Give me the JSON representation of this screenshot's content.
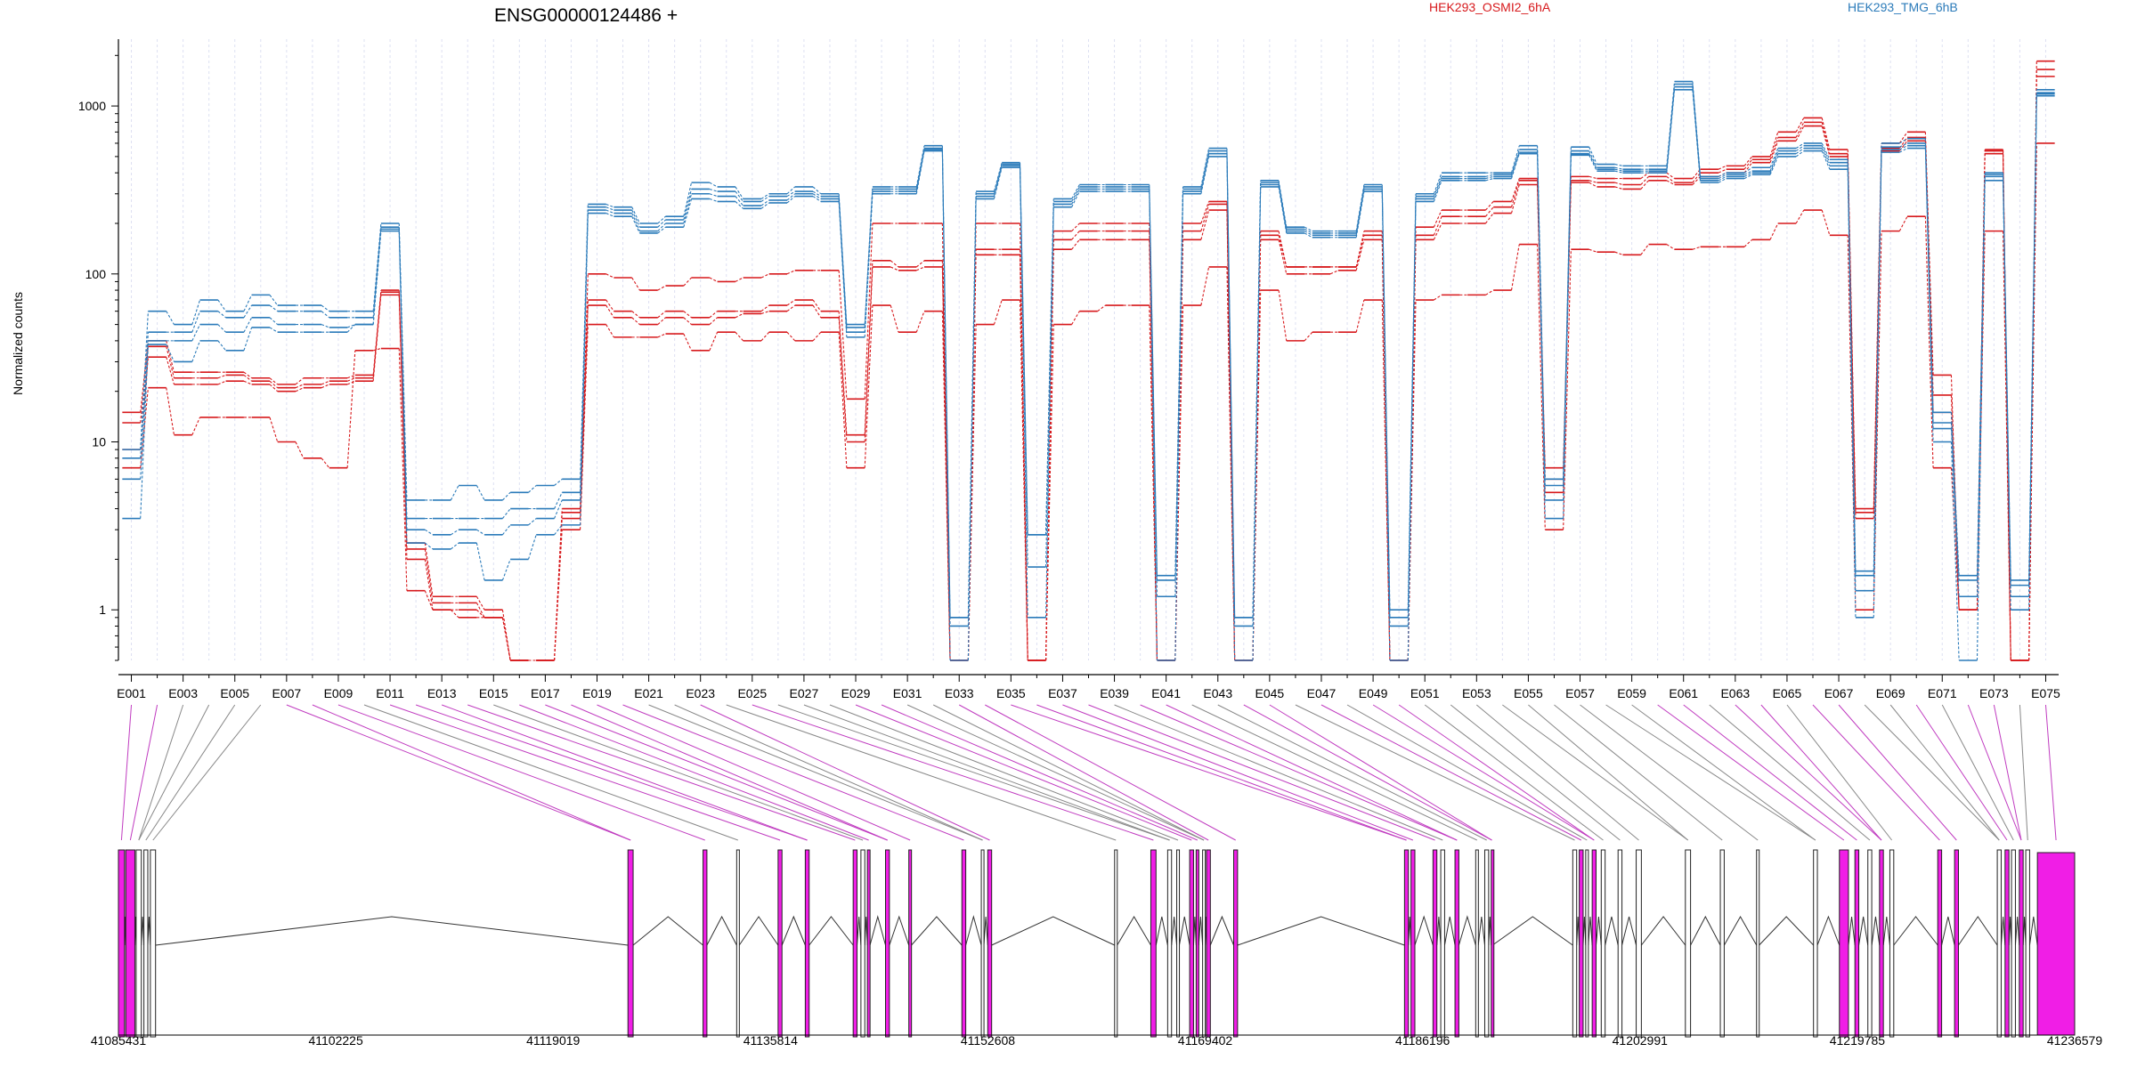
{
  "chart_data": {
    "type": "line",
    "title": "ENSG00000124486 +",
    "ylabel": "Normalized counts",
    "yscale": "log",
    "ylim": [
      0.5,
      2500
    ],
    "y_ticks": [
      "1",
      "10",
      "100",
      "1000"
    ],
    "y_tick_values": [
      1,
      10,
      100,
      1000
    ],
    "legend": [
      {
        "name": "HEK293_OSMI2_6hA",
        "color": "#d7191c"
      },
      {
        "name": "HEK293_TMG_6hB",
        "color": "#2b7bba"
      }
    ],
    "exon_labels": [
      "E001",
      "E003",
      "E005",
      "E007",
      "E009",
      "E011",
      "E013",
      "E015",
      "E017",
      "E019",
      "E021",
      "E023",
      "E025",
      "E027",
      "E029",
      "E031",
      "E033",
      "E035",
      "E037",
      "E039",
      "E041",
      "E043",
      "E045",
      "E047",
      "E049",
      "E051",
      "E053",
      "E055",
      "E057",
      "E059",
      "E061",
      "E063",
      "E065",
      "E067",
      "E069",
      "E071",
      "E073",
      "E075"
    ],
    "n_exons": 75,
    "genomic_ticks": [
      "41085431",
      "41102225",
      "41119019",
      "41135814",
      "41152608",
      "41169402",
      "41186196",
      "41202991",
      "41219785",
      "41236579"
    ],
    "genomic_range": [
      41085431,
      41236579
    ],
    "series": [
      {
        "name": "HEK293_OSMI2_6hA",
        "group": "red",
        "values": [
          15,
          40,
          26,
          26,
          26,
          24,
          22,
          24,
          24,
          25,
          80,
          2.5,
          1.2,
          1.2,
          1,
          0.5,
          0.5,
          4,
          100,
          95,
          80,
          85,
          95,
          90,
          95,
          100,
          105,
          105,
          18,
          200,
          200,
          200,
          0.5,
          200,
          200,
          0.5,
          180,
          200,
          200,
          200,
          0.5,
          200,
          270,
          0.5,
          180,
          110,
          110,
          110,
          180,
          0.5,
          190,
          240,
          240,
          270,
          370,
          7,
          380,
          370,
          370,
          400,
          370,
          420,
          440,
          500,
          700,
          850,
          550,
          4,
          600,
          700,
          25,
          1,
          550,
          0.5,
          1850
        ]
      },
      {
        "name": "HEK293_OSMI2_6hA",
        "group": "red",
        "values": [
          13,
          37,
          24,
          24,
          25,
          23,
          21,
          22,
          23,
          24,
          78,
          2.3,
          1.1,
          1.1,
          0.9,
          0.5,
          0.5,
          3.8,
          70,
          60,
          55,
          60,
          55,
          60,
          60,
          65,
          70,
          60,
          11,
          120,
          110,
          120,
          0.5,
          140,
          140,
          0.5,
          160,
          180,
          180,
          180,
          0.5,
          180,
          260,
          0.5,
          170,
          110,
          110,
          110,
          170,
          0.5,
          170,
          220,
          220,
          250,
          360,
          6,
          360,
          350,
          340,
          380,
          350,
          400,
          420,
          480,
          650,
          800,
          520,
          3.8,
          560,
          650,
          19,
          1,
          540,
          0.5,
          1650
        ]
      },
      {
        "name": "HEK293_OSMI2_6hA",
        "group": "red",
        "values": [
          9,
          32,
          22,
          22,
          23,
          22,
          20,
          21,
          22,
          23,
          75,
          2,
          1,
          1,
          0.9,
          0.5,
          0.5,
          3.5,
          65,
          55,
          50,
          55,
          50,
          55,
          58,
          60,
          65,
          55,
          10,
          110,
          105,
          110,
          0.5,
          130,
          130,
          0.5,
          140,
          160,
          160,
          160,
          0.5,
          160,
          240,
          0.5,
          160,
          100,
          100,
          105,
          160,
          0.5,
          160,
          200,
          200,
          230,
          340,
          5,
          350,
          330,
          320,
          360,
          340,
          380,
          400,
          460,
          620,
          760,
          500,
          3.5,
          540,
          620,
          15,
          1,
          520,
          0.5,
          1500
        ]
      },
      {
        "name": "HEK293_OSMI2_6hA",
        "group": "red",
        "values": [
          7,
          21,
          11,
          14,
          14,
          14,
          10,
          8,
          7,
          35,
          36,
          1.3,
          1,
          0.9,
          0.9,
          0.5,
          0.5,
          3,
          50,
          42,
          42,
          44,
          35,
          45,
          40,
          45,
          40,
          45,
          7,
          65,
          45,
          60,
          0.5,
          50,
          70,
          0.5,
          50,
          60,
          65,
          65,
          0.5,
          65,
          110,
          0.5,
          80,
          40,
          45,
          45,
          70,
          0.5,
          70,
          75,
          75,
          80,
          150,
          3,
          140,
          135,
          130,
          150,
          140,
          145,
          145,
          160,
          200,
          240,
          170,
          1,
          180,
          220,
          7,
          1,
          180,
          0.5,
          600
        ]
      },
      {
        "name": "HEK293_TMG_6hB",
        "group": "blue",
        "values": [
          9,
          60,
          50,
          70,
          60,
          75,
          65,
          65,
          60,
          60,
          200,
          4.5,
          4.5,
          5.5,
          4.5,
          5,
          5.5,
          6,
          260,
          250,
          200,
          220,
          350,
          330,
          280,
          300,
          330,
          300,
          50,
          330,
          330,
          580,
          0.9,
          310,
          460,
          2.8,
          280,
          340,
          340,
          340,
          1.6,
          330,
          560,
          0.9,
          360,
          190,
          180,
          180,
          340,
          1,
          300,
          400,
          400,
          400,
          580,
          6,
          570,
          450,
          440,
          440,
          1400,
          380,
          400,
          430,
          560,
          600,
          480,
          1.7,
          600,
          640,
          15,
          1.6,
          400,
          1.5,
          1250
        ]
      },
      {
        "name": "HEK293_TMG_6hB",
        "group": "blue",
        "values": [
          8,
          45,
          45,
          60,
          55,
          65,
          60,
          60,
          55,
          55,
          190,
          3.5,
          3.5,
          3.5,
          3.5,
          4,
          4,
          5,
          250,
          240,
          190,
          210,
          320,
          310,
          270,
          290,
          310,
          290,
          48,
          320,
          320,
          560,
          0.9,
          300,
          450,
          2.8,
          270,
          330,
          330,
          330,
          1.5,
          320,
          540,
          0.9,
          350,
          185,
          175,
          175,
          330,
          0.9,
          290,
          380,
          380,
          390,
          550,
          5.5,
          540,
          430,
          420,
          420,
          1350,
          370,
          390,
          410,
          540,
          580,
          460,
          1.6,
          570,
          600,
          13,
          1.5,
          390,
          1.4,
          1200
        ]
      },
      {
        "name": "HEK293_TMG_6hB",
        "group": "blue",
        "values": [
          6,
          40,
          40,
          50,
          45,
          55,
          50,
          50,
          48,
          50,
          185,
          3,
          2.8,
          3,
          2.8,
          3.2,
          3.5,
          4.5,
          240,
          230,
          180,
          200,
          300,
          290,
          255,
          275,
          300,
          280,
          45,
          310,
          310,
          550,
          0.8,
          290,
          440,
          1.8,
          260,
          320,
          320,
          320,
          1.2,
          310,
          520,
          0.8,
          340,
          180,
          170,
          170,
          320,
          0.8,
          280,
          370,
          370,
          380,
          530,
          4.5,
          520,
          420,
          410,
          410,
          1300,
          360,
          380,
          400,
          520,
          560,
          440,
          1.3,
          550,
          580,
          12,
          1.2,
          380,
          1.2,
          1180
        ]
      },
      {
        "name": "HEK293_TMG_6hB",
        "group": "blue",
        "values": [
          3.5,
          38,
          30,
          40,
          35,
          48,
          45,
          45,
          45,
          50,
          180,
          2.5,
          2.3,
          2.5,
          1.5,
          2,
          2.8,
          3.2,
          230,
          220,
          175,
          190,
          280,
          270,
          245,
          265,
          290,
          270,
          42,
          300,
          300,
          540,
          0.5,
          280,
          430,
          0.9,
          250,
          310,
          310,
          310,
          0.5,
          300,
          500,
          0.5,
          330,
          175,
          165,
          165,
          310,
          0.5,
          270,
          360,
          360,
          370,
          520,
          3.5,
          510,
          410,
          400,
          400,
          1250,
          350,
          370,
          390,
          500,
          540,
          420,
          0.9,
          530,
          560,
          10,
          0.5,
          360,
          1,
          1150
        ]
      }
    ],
    "gene_model": {
      "exons": [
        {
          "start": 41085431,
          "end": 41085900,
          "expressed": true
        },
        {
          "start": 41086000,
          "end": 41086700,
          "expressed": true
        },
        {
          "start": 41086800,
          "end": 41087200,
          "expressed": false
        },
        {
          "start": 41087400,
          "end": 41087700,
          "expressed": false
        },
        {
          "start": 41087900,
          "end": 41088300,
          "expressed": false
        },
        {
          "start": 41124800,
          "end": 41125200,
          "expressed": true
        },
        {
          "start": 41130600,
          "end": 41130900,
          "expressed": true
        },
        {
          "start": 41133200,
          "end": 41133400,
          "expressed": false
        },
        {
          "start": 41136400,
          "end": 41136700,
          "expressed": true
        },
        {
          "start": 41138500,
          "end": 41138800,
          "expressed": true
        },
        {
          "start": 41142200,
          "end": 41142500,
          "expressed": true
        },
        {
          "start": 41142800,
          "end": 41143100,
          "expressed": false
        },
        {
          "start": 41143300,
          "end": 41143500,
          "expressed": true
        },
        {
          "start": 41144700,
          "end": 41145000,
          "expressed": true
        },
        {
          "start": 41146500,
          "end": 41146700,
          "expressed": true
        },
        {
          "start": 41150600,
          "end": 41150900,
          "expressed": true
        },
        {
          "start": 41152100,
          "end": 41152300,
          "expressed": false
        },
        {
          "start": 41152600,
          "end": 41152900,
          "expressed": true
        },
        {
          "start": 41162400,
          "end": 41162600,
          "expressed": false
        },
        {
          "start": 41165200,
          "end": 41165600,
          "expressed": true
        },
        {
          "start": 41166500,
          "end": 41166800,
          "expressed": false
        },
        {
          "start": 41167200,
          "end": 41167400,
          "expressed": false
        },
        {
          "start": 41168200,
          "end": 41168500,
          "expressed": true
        },
        {
          "start": 41168700,
          "end": 41168900,
          "expressed": true
        },
        {
          "start": 41169200,
          "end": 41169400,
          "expressed": false
        },
        {
          "start": 41169500,
          "end": 41169800,
          "expressed": true
        },
        {
          "start": 41171600,
          "end": 41171900,
          "expressed": true
        },
        {
          "start": 41184800,
          "end": 41185100,
          "expressed": true
        },
        {
          "start": 41185300,
          "end": 41185600,
          "expressed": true
        },
        {
          "start": 41187000,
          "end": 41187300,
          "expressed": true
        },
        {
          "start": 41187600,
          "end": 41187900,
          "expressed": false
        },
        {
          "start": 41188700,
          "end": 41189000,
          "expressed": true
        },
        {
          "start": 41190300,
          "end": 41190500,
          "expressed": false
        },
        {
          "start": 41191000,
          "end": 41191300,
          "expressed": false
        },
        {
          "start": 41191500,
          "end": 41191600,
          "expressed": true
        },
        {
          "start": 41197800,
          "end": 41198100,
          "expressed": false
        },
        {
          "start": 41198300,
          "end": 41198600,
          "expressed": true
        },
        {
          "start": 41198800,
          "end": 41199000,
          "expressed": false
        },
        {
          "start": 41199300,
          "end": 41199600,
          "expressed": true
        },
        {
          "start": 41200000,
          "end": 41200300,
          "expressed": false
        },
        {
          "start": 41201300,
          "end": 41201600,
          "expressed": false
        },
        {
          "start": 41202700,
          "end": 41203100,
          "expressed": false
        },
        {
          "start": 41206500,
          "end": 41206900,
          "expressed": false
        },
        {
          "start": 41209200,
          "end": 41209500,
          "expressed": false
        },
        {
          "start": 41212000,
          "end": 41212200,
          "expressed": false
        },
        {
          "start": 41216400,
          "end": 41216700,
          "expressed": false
        },
        {
          "start": 41218400,
          "end": 41219100,
          "expressed": true
        },
        {
          "start": 41219600,
          "end": 41219900,
          "expressed": true
        },
        {
          "start": 41220600,
          "end": 41220900,
          "expressed": false
        },
        {
          "start": 41221500,
          "end": 41221800,
          "expressed": true
        },
        {
          "start": 41222300,
          "end": 41222600,
          "expressed": false
        },
        {
          "start": 41226000,
          "end": 41226300,
          "expressed": true
        },
        {
          "start": 41227300,
          "end": 41227600,
          "expressed": true
        },
        {
          "start": 41230600,
          "end": 41230900,
          "expressed": false
        },
        {
          "start": 41231200,
          "end": 41231500,
          "expressed": true
        },
        {
          "start": 41231700,
          "end": 41232000,
          "expressed": false
        },
        {
          "start": 41232300,
          "end": 41232600,
          "expressed": true
        },
        {
          "start": 41232800,
          "end": 41233100,
          "expressed": false
        },
        {
          "start": 41233700,
          "end": 41236579,
          "expressed": true
        }
      ]
    }
  }
}
